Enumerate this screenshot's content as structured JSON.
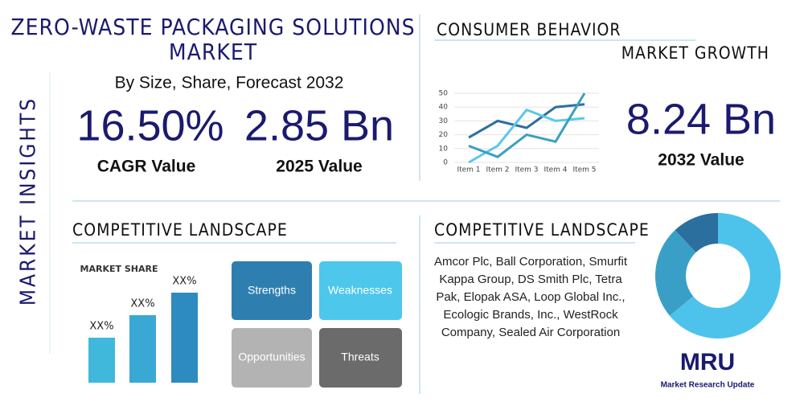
{
  "header": {
    "title_line1": "ZERO-WASTE PACKAGING SOLUTIONS",
    "title_line2": "MARKET",
    "subtitle": "By Size, Share, Forecast 2032",
    "side_label": "MARKET INSIGHTS"
  },
  "stats": [
    {
      "value": "16.50%",
      "label": "CAGR Value"
    },
    {
      "value": "2.85 Bn",
      "label": "2025 Value"
    },
    {
      "value": "8.24 Bn",
      "label": "2032 Value"
    }
  ],
  "sections": {
    "consumer_behavior": "CONSUMER BEHAVIOR",
    "market_growth": "MARKET GROWTH",
    "competitive_left": "COMPETITIVE LANDSCAPE",
    "competitive_right": "COMPETITIVE LANDSCAPE"
  },
  "swot": [
    "Strengths",
    "Weaknesses",
    "Opportunities",
    "Threats"
  ],
  "companies": "Amcor Plc, Ball Corporation, Smurfit Kappa Group, DS Smith Plc, Tetra Pak, Elopak ASA, Loop Global Inc., Ecologic Brands, Inc., WestRock Company, Sealed Air Corporation",
  "logo": {
    "mark": "MRU",
    "name": "Market Research Update"
  },
  "chart_data": [
    {
      "type": "line",
      "categories": [
        "Item 1",
        "Item 2",
        "Item 3",
        "Item 4",
        "Item 5"
      ],
      "series": [
        {
          "color": "#2e6f9e",
          "values": [
            18,
            30,
            25,
            40,
            42
          ]
        },
        {
          "color": "#5bc8e8",
          "values": [
            0,
            12,
            38,
            30,
            32
          ]
        },
        {
          "color": "#3a9fc0",
          "values": [
            12,
            4,
            20,
            15,
            50
          ]
        }
      ],
      "ylim": [
        0,
        50
      ],
      "yticks": [
        0,
        10,
        20,
        30,
        40,
        50
      ]
    },
    {
      "type": "bar",
      "title": "MARKET SHARE",
      "categories": [
        null,
        null,
        null
      ],
      "values": [
        20,
        30,
        40
      ],
      "value_labels": [
        "XX%",
        "XX%",
        "XX%"
      ],
      "colors": [
        "#3fb8dc",
        "#3aa8d4",
        "#2e8bc0"
      ],
      "ylim": [
        0,
        40
      ]
    },
    {
      "type": "pie",
      "values": [
        64,
        24,
        12
      ],
      "colors": [
        "#4dc3ec",
        "#3a9fc7",
        "#2a6f9e"
      ]
    }
  ]
}
